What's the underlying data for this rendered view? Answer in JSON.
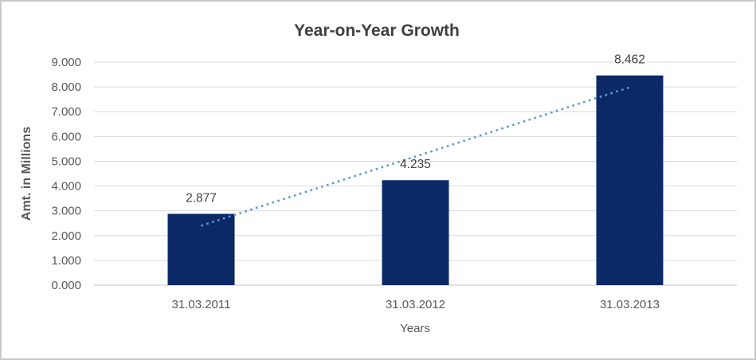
{
  "chart_data": {
    "type": "bar",
    "title": "Year-on-Year Growth",
    "xlabel": "Years",
    "ylabel": "Amt. in Millions",
    "categories": [
      "31.03.2011",
      "31.03.2012",
      "31.03.2013"
    ],
    "values": [
      2.877,
      4.235,
      8.462
    ],
    "value_labels": [
      "2.877",
      "4.235",
      "8.462"
    ],
    "y_ticks": [
      "0.000",
      "1.000",
      "2.000",
      "3.000",
      "4.000",
      "5.000",
      "6.000",
      "7.000",
      "8.000",
      "9.000"
    ],
    "ylim": [
      0,
      9
    ],
    "grid": true,
    "legend": "none",
    "trendline": {
      "type": "linear",
      "style": "dotted",
      "color": "#5b9bd5"
    },
    "colors": {
      "bar": "#0a2966",
      "gridline": "#d9d9d9",
      "axis_line": "#c6c6c6",
      "tick_label": "#595959",
      "axis_title": "#595959",
      "title": "#3f3f3f",
      "data_label": "#404040",
      "frame_border": "#c9c9c9",
      "background": "#ffffff"
    }
  }
}
